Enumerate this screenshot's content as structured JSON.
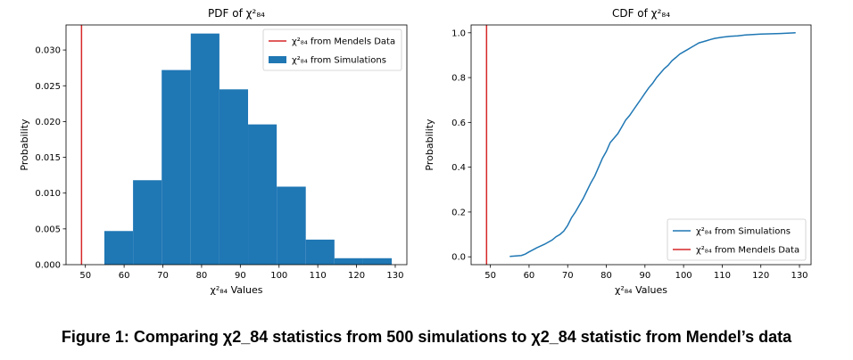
{
  "chart_data": [
    {
      "type": "bar",
      "title": "PDF of χ²₈₄",
      "xlabel": "χ²₈₄ Values",
      "ylabel": "Probability",
      "xlim": [
        45,
        133
      ],
      "ylim": [
        0,
        0.0335
      ],
      "xticks": [
        50,
        60,
        70,
        80,
        90,
        100,
        110,
        120,
        130
      ],
      "yticks": [
        0,
        0.005,
        0.01,
        0.015,
        0.02,
        0.025,
        0.03
      ],
      "ytick_labels": [
        "0.000",
        "0.005",
        "0.010",
        "0.015",
        "0.020",
        "0.025",
        "0.030"
      ],
      "bin_edges": [
        54.9,
        62.3,
        69.7,
        77.2,
        84.6,
        92.0,
        99.4,
        106.9,
        114.3,
        121.7,
        129.1
      ],
      "values": [
        0.0047,
        0.0118,
        0.0272,
        0.0323,
        0.0245,
        0.0196,
        0.0109,
        0.0035,
        0.0009,
        0.0009
      ],
      "reference_line": {
        "x": 49,
        "color": "#d62728"
      },
      "legend": [
        {
          "label": "χ²₈₄ from Mendels Data",
          "kind": "line",
          "color": "#d62728"
        },
        {
          "label": "χ²₈₄ from Simulations",
          "kind": "patch",
          "color": "#1f77b4"
        }
      ],
      "legend_position": "upper-right"
    },
    {
      "type": "line",
      "title": "CDF of χ²₈₄",
      "xlabel": "χ²₈₄ Values",
      "ylabel": "Probability",
      "xlim": [
        45,
        133
      ],
      "ylim": [
        -0.035,
        1.035
      ],
      "xticks": [
        50,
        60,
        70,
        80,
        90,
        100,
        110,
        120,
        130
      ],
      "yticks": [
        0,
        0.2,
        0.4,
        0.6,
        0.8,
        1.0
      ],
      "ytick_labels": [
        "0.0",
        "0.2",
        "0.4",
        "0.6",
        "0.8",
        "1.0"
      ],
      "x": [
        55,
        58,
        59,
        60,
        62,
        64,
        66,
        67,
        68,
        69,
        70,
        71,
        72,
        73,
        74,
        75,
        76,
        77,
        78,
        79,
        80,
        81,
        82,
        83,
        84,
        85,
        86,
        87,
        88,
        89,
        90,
        91,
        92,
        93,
        94,
        95,
        96,
        97,
        98,
        99,
        100,
        101,
        102,
        103,
        104,
        105,
        106,
        107,
        108,
        110,
        112,
        114,
        116,
        118,
        120,
        125,
        129
      ],
      "values": [
        0.002,
        0.006,
        0.012,
        0.022,
        0.04,
        0.056,
        0.075,
        0.09,
        0.1,
        0.115,
        0.14,
        0.175,
        0.2,
        0.23,
        0.26,
        0.295,
        0.33,
        0.36,
        0.4,
        0.44,
        0.47,
        0.51,
        0.53,
        0.55,
        0.58,
        0.61,
        0.63,
        0.655,
        0.68,
        0.705,
        0.73,
        0.755,
        0.775,
        0.8,
        0.82,
        0.84,
        0.855,
        0.875,
        0.89,
        0.905,
        0.915,
        0.925,
        0.935,
        0.945,
        0.955,
        0.96,
        0.965,
        0.97,
        0.975,
        0.98,
        0.984,
        0.986,
        0.99,
        0.992,
        0.994,
        0.997,
        1.0
      ],
      "reference_line": {
        "x": 49,
        "color": "#d62728"
      },
      "series_color": "#1f77b4",
      "legend": [
        {
          "label": "χ²₈₄ from Simulations",
          "kind": "line",
          "color": "#1f77b4"
        },
        {
          "label": "χ²₈₄ from Mendels Data",
          "kind": "line",
          "color": "#d62728"
        }
      ],
      "legend_position": "lower-right"
    }
  ],
  "caption": "Figure 1: Comparing χ2_84 statistics from 500 simulations to χ2_84 statistic from Mendel’s data"
}
